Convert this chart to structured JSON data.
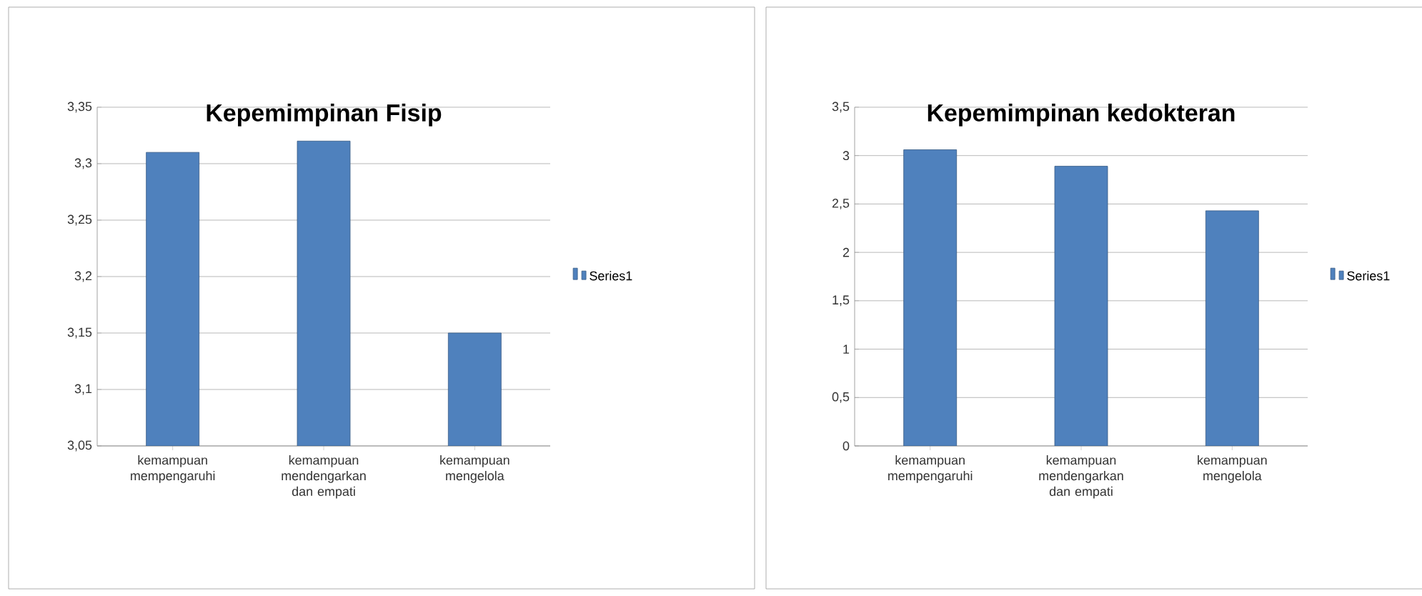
{
  "chart_data": [
    {
      "type": "bar",
      "title": "Kepemimpinan Fisip",
      "categories": [
        "kemampuan mempengaruhi",
        "kemampuan mendengarkan dan empati",
        "kemampuan mengelola"
      ],
      "series": [
        {
          "name": "Series1",
          "color": "#4f81bd",
          "values": [
            3.31,
            3.32,
            3.15
          ]
        }
      ],
      "ylim": [
        3.05,
        3.35
      ],
      "yticks": [
        {
          "value": 3.05,
          "label": "3,05"
        },
        {
          "value": 3.1,
          "label": "3,1"
        },
        {
          "value": 3.15,
          "label": "3,15"
        },
        {
          "value": 3.2,
          "label": "3,2"
        },
        {
          "value": 3.25,
          "label": "3,25"
        },
        {
          "value": 3.3,
          "label": "3,3"
        },
        {
          "value": 3.35,
          "label": "3,35"
        }
      ],
      "grid": "y",
      "legend": "right"
    },
    {
      "type": "bar",
      "title": "Kepemimpinan kedokteran",
      "categories": [
        "kemampuan mempengaruhi",
        "kemampuan mendengarkan dan empati",
        "kemampuan mengelola"
      ],
      "series": [
        {
          "name": "Series1",
          "color": "#4f81bd",
          "values": [
            3.06,
            2.89,
            2.43
          ]
        }
      ],
      "ylim": [
        0,
        3.5
      ],
      "yticks": [
        0,
        {
          "value": 0.5,
          "label": "0,5"
        },
        1,
        {
          "value": 1.5,
          "label": "1,5"
        },
        2,
        {
          "value": 2.5,
          "label": "2,5"
        },
        3,
        {
          "value": 3.5,
          "label": "3,5"
        }
      ],
      "grid": "y",
      "legend": "right"
    }
  ]
}
